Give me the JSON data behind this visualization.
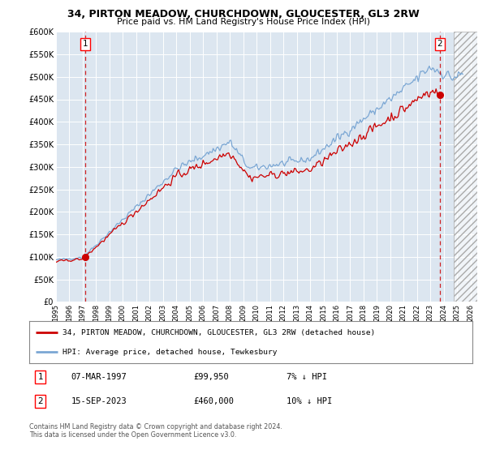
{
  "title": "34, PIRTON MEADOW, CHURCHDOWN, GLOUCESTER, GL3 2RW",
  "subtitle": "Price paid vs. HM Land Registry's House Price Index (HPI)",
  "ylim": [
    0,
    600000
  ],
  "yticks": [
    0,
    50000,
    100000,
    150000,
    200000,
    250000,
    300000,
    350000,
    400000,
    450000,
    500000,
    550000,
    600000
  ],
  "ytick_labels": [
    "£0",
    "£50K",
    "£100K",
    "£150K",
    "£200K",
    "£250K",
    "£300K",
    "£350K",
    "£400K",
    "£450K",
    "£500K",
    "£550K",
    "£600K"
  ],
  "xlim_start": 1995.0,
  "xlim_end": 2026.5,
  "hatch_start": 2024.75,
  "bg_color": "#dce6f0",
  "plot_bg_color": "#dce6f0",
  "hpi_color": "#7ba7d4",
  "price_color": "#cc0000",
  "transaction1_date": "07-MAR-1997",
  "transaction1_price": "£99,950",
  "transaction1_hpi": "7% ↓ HPI",
  "transaction1_x": 1997.17,
  "transaction1_y": 99950,
  "transaction2_date": "15-SEP-2023",
  "transaction2_price": "£460,000",
  "transaction2_hpi": "10% ↓ HPI",
  "transaction2_x": 2023.71,
  "transaction2_y": 460000,
  "legend_line1": "34, PIRTON MEADOW, CHURCHDOWN, GLOUCESTER, GL3 2RW (detached house)",
  "legend_line2": "HPI: Average price, detached house, Tewkesbury",
  "footnote": "Contains HM Land Registry data © Crown copyright and database right 2024.\nThis data is licensed under the Open Government Licence v3.0."
}
